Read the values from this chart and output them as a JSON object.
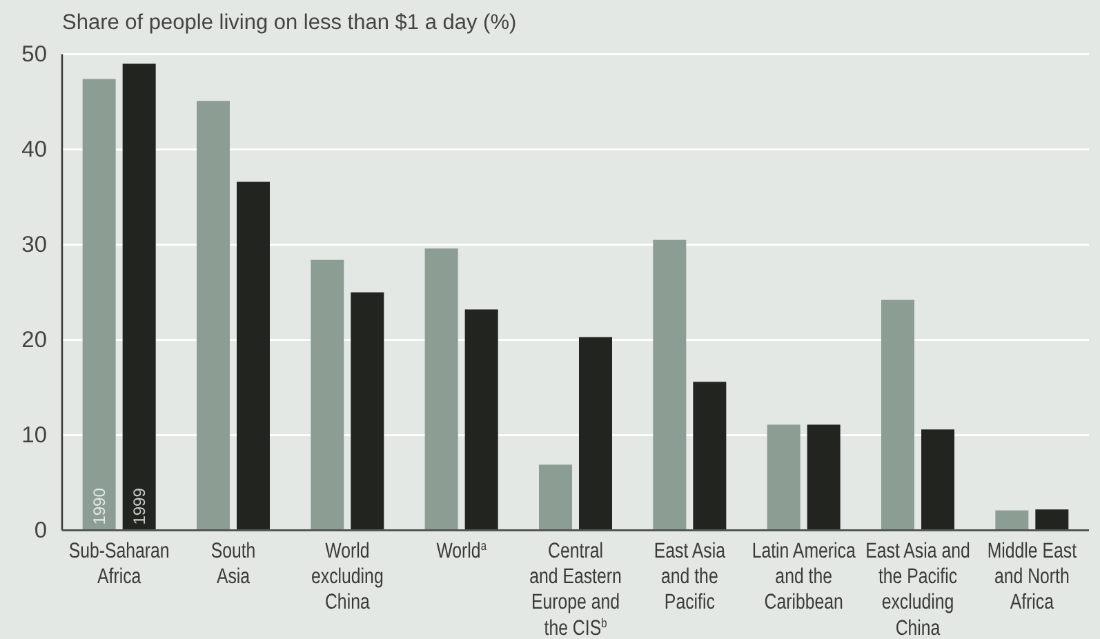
{
  "chart_data": {
    "type": "bar",
    "ylabel": "Share of people living on less than $1 a day (%)",
    "categories": [
      "Sub-Saharan\nAfrica",
      "South\nAsia",
      "World\nexcluding\nChina",
      "World$^{a}$",
      "Central\nand Eastern\nEurope and\nthe CIS$^{b}$",
      "East Asia\nand the\nPacific",
      "Latin America\nand the\nCaribbean",
      "East Asia and\nthe Pacific\nexcluding\nChina",
      "Middle East\nand North\nAfrica"
    ],
    "series": [
      {
        "name": "1990",
        "color": "#8c9d93",
        "values": [
          47.4,
          45.1,
          28.4,
          29.6,
          6.9,
          30.5,
          11.1,
          24.2,
          2.1
        ]
      },
      {
        "name": "1999",
        "color": "#222420",
        "values": [
          49.0,
          36.6,
          25.0,
          23.2,
          20.3,
          15.6,
          11.1,
          10.6,
          2.2
        ]
      }
    ],
    "ylim": [
      0,
      50
    ],
    "yticks": [
      0,
      10,
      20,
      30,
      40,
      50
    ],
    "grid": "y"
  }
}
